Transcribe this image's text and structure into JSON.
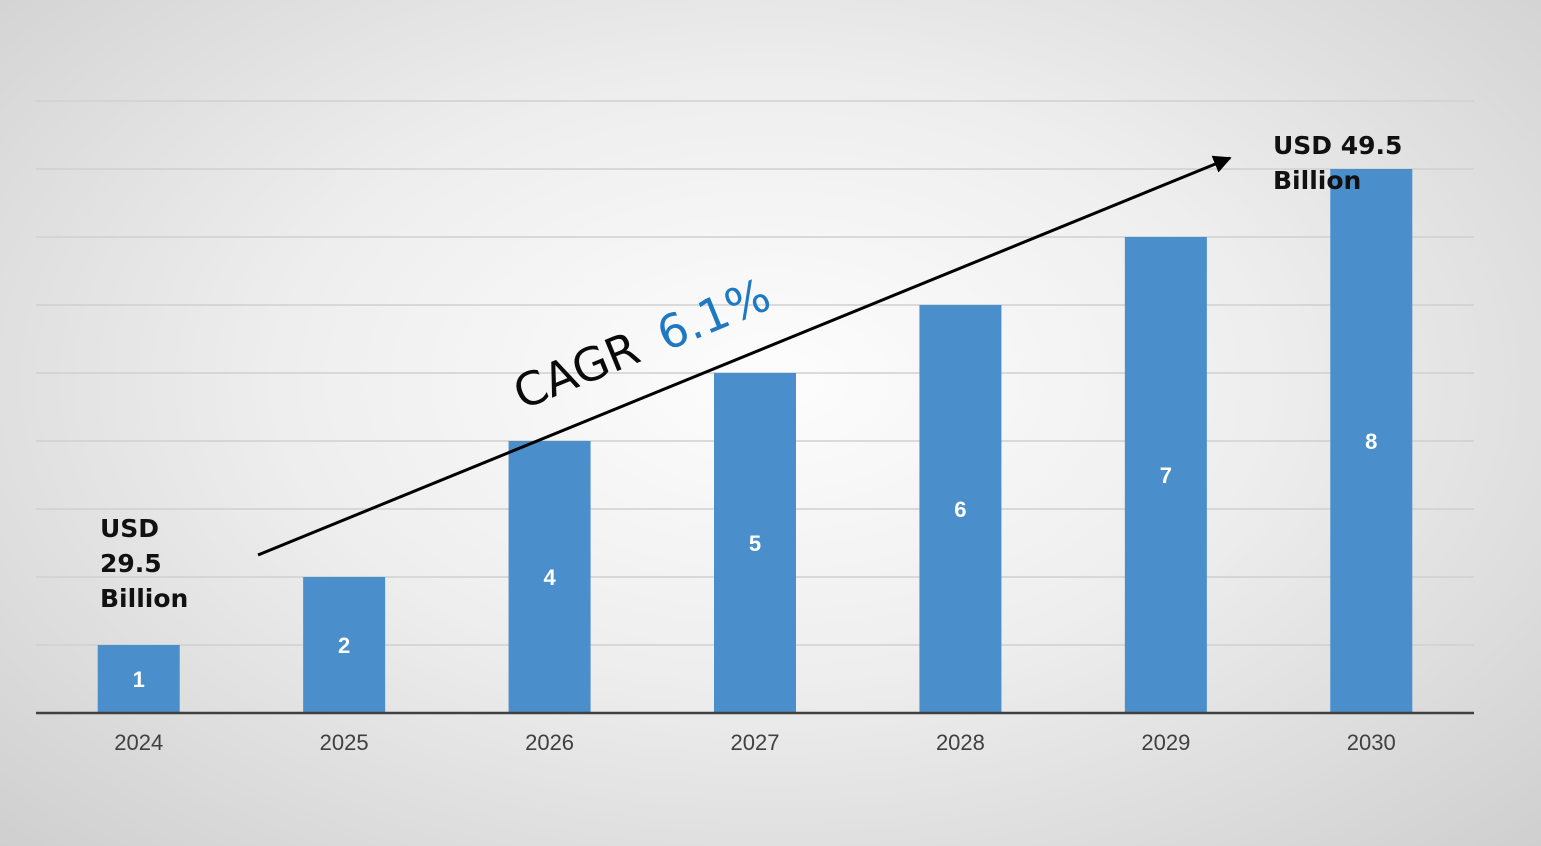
{
  "chart_data": {
    "type": "bar",
    "categories": [
      "2024",
      "2025",
      "2026",
      "2027",
      "2028",
      "2029",
      "2030"
    ],
    "values": [
      1,
      2,
      4,
      5,
      6,
      7,
      8
    ],
    "data_labels": [
      "1",
      "2",
      "4",
      "5",
      "6",
      "7",
      "8"
    ],
    "xlabel": "",
    "ylabel": "",
    "ylim": [
      0,
      9
    ],
    "grid": true,
    "legend": "none",
    "bar_color": "#4a8ecc",
    "annotations": {
      "start_lines": [
        "USD",
        "29.5",
        "Billion"
      ],
      "end_lines": [
        "USD 49.5",
        "Billion"
      ],
      "cagr_word": "CAGR",
      "cagr_value": "6.1%"
    }
  }
}
